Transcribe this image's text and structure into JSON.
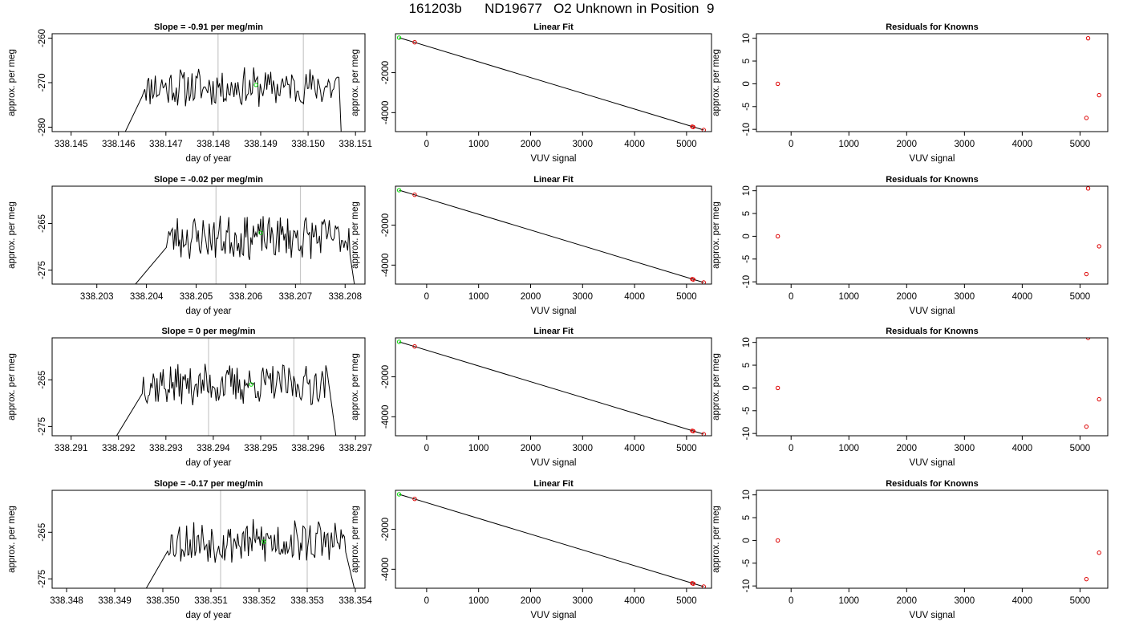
{
  "page": {
    "title": "161203b      ND19677   O2 Unknown in Position  9"
  },
  "colors": {
    "trace": "#000000",
    "marker_green": "#00dd00",
    "marker_red": "#dd0000",
    "gridline": "#c8c8c8"
  },
  "chart_data": [
    {
      "type": "line",
      "title": "Slope =  -0.91  per meg/min",
      "xlabel": "day of year",
      "ylabel": "approx. per meg",
      "xlim": [
        338.1446,
        338.1512
      ],
      "ylim": [
        -281,
        -259
      ],
      "xticks": [
        "338.145",
        "338.146",
        "338.147",
        "338.148",
        "338.149",
        "338.150",
        "338.151"
      ],
      "xtick_values": [
        338.145,
        338.146,
        338.147,
        338.148,
        338.149,
        338.15,
        338.151
      ],
      "yticks": [
        "-260",
        "-270",
        "-280"
      ],
      "ytick_values": [
        -260,
        -270,
        -280
      ],
      "vlines": [
        338.1481,
        338.1499
      ],
      "series_seed": 11,
      "trace": {
        "start": 338.1461,
        "rise_end": 338.1465,
        "fall_start": 338.15065,
        "end": 338.1507,
        "level": -271,
        "amplitude": 1.8,
        "base": -282
      },
      "green_point": [
        338.1489,
        -270.5
      ]
    },
    {
      "type": "scatter",
      "title": "Linear Fit",
      "xlabel": "VUV signal",
      "ylabel": "approx. per meg",
      "xlim": [
        -600,
        5480
      ],
      "ylim": [
        -4950,
        -50
      ],
      "xticks": [
        "0",
        "1000",
        "2000",
        "3000",
        "4000",
        "5000"
      ],
      "xtick_values": [
        0,
        1000,
        2000,
        3000,
        4000,
        5000
      ],
      "yticks": [
        "-2000",
        "-4000"
      ],
      "ytick_values": [
        -2000,
        -4000
      ],
      "fit_line": [
        [
          -530,
          -250
        ],
        [
          5330,
          -4870
        ]
      ],
      "green_points": [
        [
          -530,
          -250
        ]
      ],
      "red_points": [
        [
          -230,
          -480
        ],
        [
          5110,
          -4700
        ],
        [
          5130,
          -4720
        ],
        [
          5330,
          -4870
        ]
      ]
    },
    {
      "type": "scatter",
      "title": "Residuals for Knowns",
      "xlabel": "VUV signal",
      "ylabel": "approx. per meg",
      "xlim": [
        -600,
        5480
      ],
      "ylim": [
        -10.5,
        11
      ],
      "xticks": [
        "0",
        "1000",
        "2000",
        "3000",
        "4000",
        "5000"
      ],
      "xtick_values": [
        0,
        1000,
        2000,
        3000,
        4000,
        5000
      ],
      "yticks": [
        "10",
        "5",
        "0",
        "-5",
        "-10"
      ],
      "ytick_values": [
        10,
        5,
        0,
        -5,
        -10
      ],
      "red_points": [
        [
          -230,
          0
        ],
        [
          5140,
          10
        ],
        [
          5110,
          -7.5
        ],
        [
          5330,
          -2.5
        ]
      ]
    },
    {
      "type": "line",
      "title": "Slope =  -0.02  per meg/min",
      "xlabel": "day of year",
      "ylabel": "approx. per meg",
      "xlim": [
        338.2021,
        338.2084
      ],
      "ylim": [
        -278,
        -257
      ],
      "xticks": [
        "338.203",
        "338.204",
        "338.205",
        "338.206",
        "338.207",
        "338.208"
      ],
      "xtick_values": [
        338.203,
        338.204,
        338.205,
        338.206,
        338.207,
        338.208
      ],
      "yticks": [
        "-265",
        "-275"
      ],
      "ytick_values": [
        -265,
        -275
      ],
      "vlines": [
        338.2054,
        338.2071
      ],
      "series_seed": 23,
      "trace": {
        "start": 338.2037,
        "rise_end": 338.2044,
        "fall_start": 338.2081,
        "end": 338.2082,
        "level": -268,
        "amplitude": 1.9,
        "base": -279
      },
      "green_point": [
        338.2063,
        -267
      ]
    },
    {
      "type": "scatter",
      "title": "Linear Fit",
      "xlabel": "VUV signal",
      "ylabel": "approx. per meg",
      "xlim": [
        -600,
        5480
      ],
      "ylim": [
        -4950,
        -50
      ],
      "xticks": [
        "0",
        "1000",
        "2000",
        "3000",
        "4000",
        "5000"
      ],
      "xtick_values": [
        0,
        1000,
        2000,
        3000,
        4000,
        5000
      ],
      "yticks": [
        "-2000",
        "-4000"
      ],
      "ytick_values": [
        -2000,
        -4000
      ],
      "fit_line": [
        [
          -530,
          -250
        ],
        [
          5330,
          -4870
        ]
      ],
      "green_points": [
        [
          -530,
          -250
        ]
      ],
      "red_points": [
        [
          -230,
          -480
        ],
        [
          5110,
          -4700
        ],
        [
          5130,
          -4720
        ],
        [
          5330,
          -4870
        ]
      ]
    },
    {
      "type": "scatter",
      "title": "Residuals for Knowns",
      "xlabel": "VUV signal",
      "ylabel": "approx. per meg",
      "xlim": [
        -600,
        5480
      ],
      "ylim": [
        -10.5,
        11
      ],
      "xticks": [
        "0",
        "1000",
        "2000",
        "3000",
        "4000",
        "5000"
      ],
      "xtick_values": [
        0,
        1000,
        2000,
        3000,
        4000,
        5000
      ],
      "yticks": [
        "10",
        "5",
        "0",
        "-5",
        "-10"
      ],
      "ytick_values": [
        10,
        5,
        0,
        -5,
        -10
      ],
      "red_points": [
        [
          -230,
          0
        ],
        [
          5140,
          10.5
        ],
        [
          5110,
          -8.3
        ],
        [
          5330,
          -2.2
        ]
      ]
    },
    {
      "type": "line",
      "title": "Slope =  0  per meg/min",
      "xlabel": "day of year",
      "ylabel": "approx. per meg",
      "xlim": [
        338.2906,
        338.2972
      ],
      "ylim": [
        -277,
        -256
      ],
      "xticks": [
        "338.291",
        "338.292",
        "338.293",
        "338.294",
        "338.295",
        "338.296",
        "338.297"
      ],
      "xtick_values": [
        338.291,
        338.292,
        338.293,
        338.294,
        338.295,
        338.296,
        338.297
      ],
      "yticks": [
        "-265",
        "-275"
      ],
      "ytick_values": [
        -265,
        -275
      ],
      "vlines": [
        338.2939,
        338.2957
      ],
      "series_seed": 37,
      "trace": {
        "start": 338.2919,
        "rise_end": 338.2925,
        "fall_start": 338.2964,
        "end": 338.2966,
        "level": -266,
        "amplitude": 1.8,
        "base": -278
      },
      "green_point": [
        338.2948,
        -266
      ]
    },
    {
      "type": "scatter",
      "title": "Linear Fit",
      "xlabel": "VUV signal",
      "ylabel": "approx. per meg",
      "xlim": [
        -600,
        5480
      ],
      "ylim": [
        -4950,
        -50
      ],
      "xticks": [
        "0",
        "1000",
        "2000",
        "3000",
        "4000",
        "5000"
      ],
      "xtick_values": [
        0,
        1000,
        2000,
        3000,
        4000,
        5000
      ],
      "yticks": [
        "-2000",
        "-4000"
      ],
      "ytick_values": [
        -2000,
        -4000
      ],
      "fit_line": [
        [
          -530,
          -250
        ],
        [
          5330,
          -4870
        ]
      ],
      "green_points": [
        [
          -530,
          -250
        ]
      ],
      "red_points": [
        [
          -230,
          -480
        ],
        [
          5110,
          -4700
        ],
        [
          5130,
          -4720
        ],
        [
          5330,
          -4870
        ]
      ]
    },
    {
      "type": "scatter",
      "title": "Residuals for Knowns",
      "xlabel": "VUV signal",
      "ylabel": "approx. per meg",
      "xlim": [
        -600,
        5480
      ],
      "ylim": [
        -10.5,
        11
      ],
      "xticks": [
        "0",
        "1000",
        "2000",
        "3000",
        "4000",
        "5000"
      ],
      "xtick_values": [
        0,
        1000,
        2000,
        3000,
        4000,
        5000
      ],
      "yticks": [
        "10",
        "5",
        "0",
        "-5",
        "-10"
      ],
      "ytick_values": [
        10,
        5,
        0,
        -5,
        -10
      ],
      "red_points": [
        [
          -230,
          0
        ],
        [
          5140,
          11
        ],
        [
          5110,
          -8.5
        ],
        [
          5330,
          -2.5
        ]
      ]
    },
    {
      "type": "line",
      "title": "Slope =  -0.17  per meg/min",
      "xlabel": "day of year",
      "ylabel": "approx. per meg",
      "xlim": [
        338.3477,
        338.3542
      ],
      "ylim": [
        -277,
        -256
      ],
      "xticks": [
        "338.348",
        "338.349",
        "338.350",
        "338.351",
        "338.352",
        "338.353",
        "338.354"
      ],
      "xtick_values": [
        338.348,
        338.349,
        338.35,
        338.351,
        338.352,
        338.353,
        338.354
      ],
      "yticks": [
        "-265",
        "-275"
      ],
      "ytick_values": [
        -265,
        -275
      ],
      "vlines": [
        338.3512,
        338.353
      ],
      "series_seed": 53,
      "trace": {
        "start": 338.3496,
        "rise_end": 338.3501,
        "fall_start": 338.3538,
        "end": 338.354,
        "level": -267,
        "amplitude": 1.9,
        "base": -278
      },
      "green_point": [
        338.3521,
        -267
      ]
    },
    {
      "type": "scatter",
      "title": "Linear Fit",
      "xlabel": "VUV signal",
      "ylabel": "approx. per meg",
      "xlim": [
        -600,
        5480
      ],
      "ylim": [
        -4950,
        -50
      ],
      "xticks": [
        "0",
        "1000",
        "2000",
        "3000",
        "4000",
        "5000"
      ],
      "xtick_values": [
        0,
        1000,
        2000,
        3000,
        4000,
        5000
      ],
      "yticks": [
        "-2000",
        "-4000"
      ],
      "ytick_values": [
        -2000,
        -4000
      ],
      "fit_line": [
        [
          -530,
          -250
        ],
        [
          5330,
          -4870
        ]
      ],
      "green_points": [
        [
          -530,
          -250
        ]
      ],
      "red_points": [
        [
          -230,
          -480
        ],
        [
          5110,
          -4700
        ],
        [
          5130,
          -4720
        ],
        [
          5330,
          -4870
        ]
      ]
    },
    {
      "type": "scatter",
      "title": "Residuals for Knowns",
      "xlabel": "VUV signal",
      "ylabel": "approx. per meg",
      "xlim": [
        -600,
        5480
      ],
      "ylim": [
        -10.5,
        11
      ],
      "xticks": [
        "0",
        "1000",
        "2000",
        "3000",
        "4000",
        "5000"
      ],
      "xtick_values": [
        0,
        1000,
        2000,
        3000,
        4000,
        5000
      ],
      "yticks": [
        "10",
        "5",
        "0",
        "-5",
        "-10"
      ],
      "ytick_values": [
        10,
        5,
        0,
        -5,
        -10
      ],
      "red_points": [
        [
          -230,
          0
        ],
        [
          5110,
          -8.5
        ],
        [
          5330,
          -2.7
        ]
      ]
    }
  ]
}
